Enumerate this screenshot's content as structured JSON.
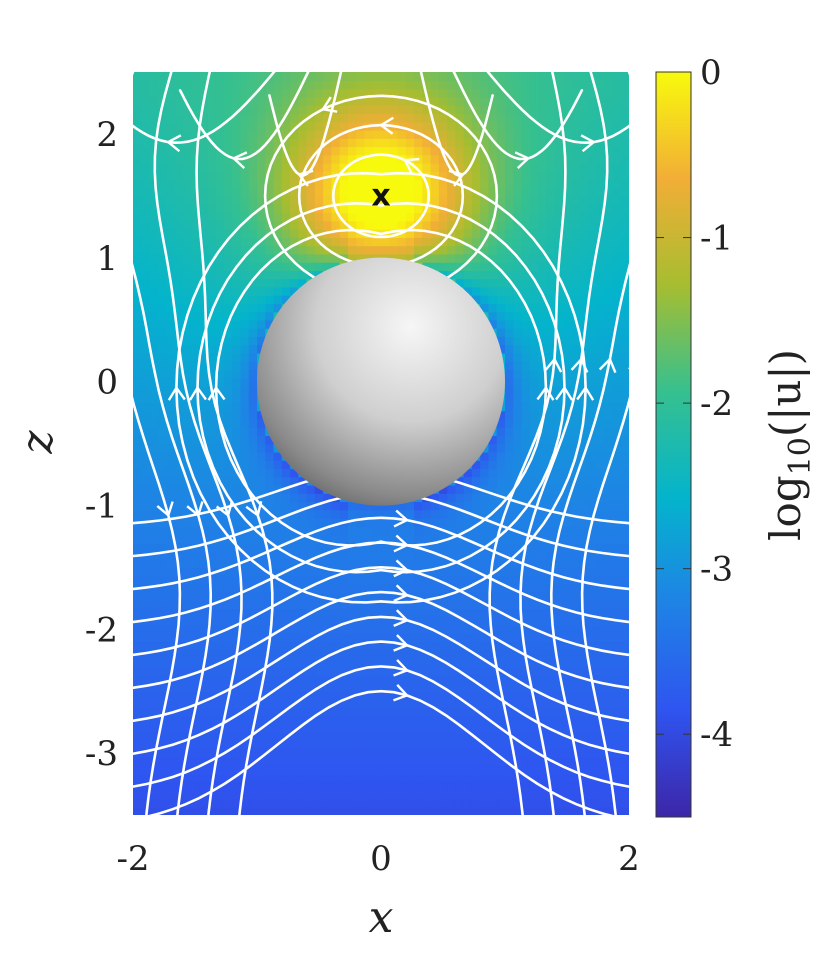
{
  "chart_data": {
    "type": "heatmap",
    "title": "",
    "xlabel": "x",
    "ylabel": "z",
    "xlim": [
      -2,
      2
    ],
    "ylim": [
      -3.5,
      2.5
    ],
    "xticks": [
      -2,
      0,
      2
    ],
    "yticks": [
      -3,
      -2,
      -1,
      0,
      1,
      2
    ],
    "colorbar": {
      "label": "log10(|u|)",
      "label_base": "log",
      "label_sub": "10",
      "label_arg": "(|u|)",
      "range": [
        -4.5,
        0
      ],
      "ticks": [
        0,
        -1,
        -2,
        -3,
        -4
      ],
      "colormap": "parula",
      "colors": [
        "#3d26a8",
        "#2f54f0",
        "#1f82e6",
        "#04b4cc",
        "#36c08f",
        "#a7bd30",
        "#f2ae36",
        "#f8fa0d"
      ]
    },
    "sphere": {
      "center": [
        0,
        0
      ],
      "radius": 1,
      "color": "#c8c8c8"
    },
    "marker": {
      "label": "x",
      "position": [
        0,
        1.5
      ]
    },
    "streamline_color": "#ffffff",
    "grid": false
  }
}
